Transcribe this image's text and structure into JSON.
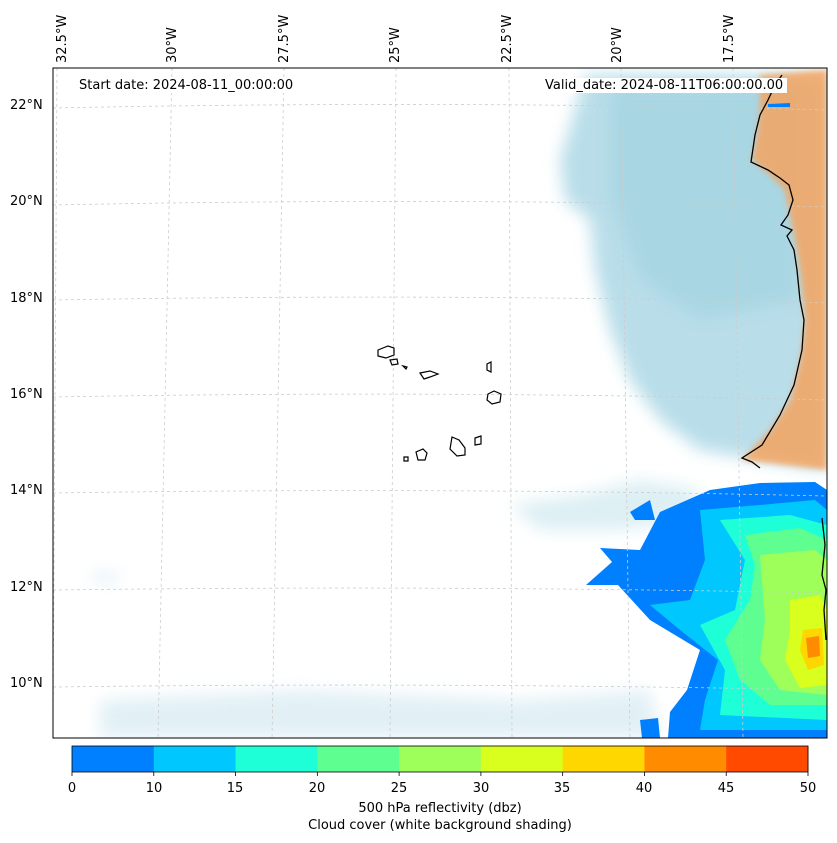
{
  "header": {
    "start_date": "Start date: 2024-08-11_00:00:00",
    "valid_date": "Valid_date: 2024-08-11T06:00:00.00"
  },
  "longitude_labels": [
    "32.5°W",
    "30°W",
    "27.5°W",
    "25°W",
    "22.5°W",
    "20°W",
    "17.5°W"
  ],
  "latitude_labels": [
    "22°N",
    "20°N",
    "18°N",
    "16°N",
    "14°N",
    "12°N",
    "10°N"
  ],
  "colorbar": {
    "ticks": [
      "0",
      "10",
      "15",
      "20",
      "25",
      "30",
      "35",
      "40",
      "45",
      "50"
    ],
    "colors": [
      "#0080ff",
      "#00c8ff",
      "#1effd8",
      "#5eff90",
      "#9eff5a",
      "#d8ff1e",
      "#ffd700",
      "#ff8c00",
      "#ff4a00"
    ],
    "label_line1": "500 hPa reflectivity (dbz)",
    "label_line2": "Cloud cover (white background shading)"
  },
  "colors": {
    "cloud": "#add8e6",
    "land": "#f4a460",
    "coast": "#000000",
    "grid": "#cccccc"
  }
}
